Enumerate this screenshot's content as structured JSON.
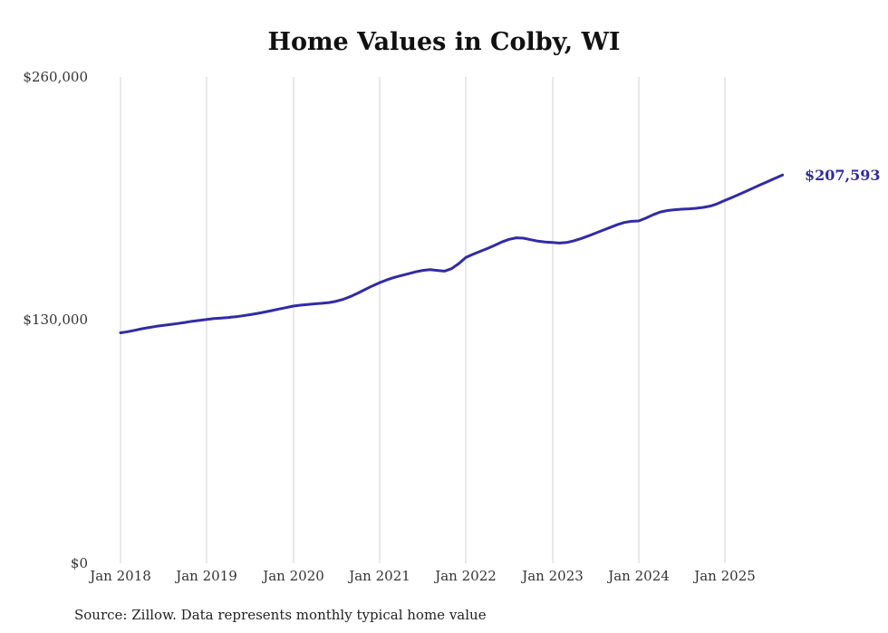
{
  "title": "Home Values in Colby, WI",
  "source_note": "Source: Zillow. Data represents monthly typical home value",
  "end_label": "$207,593",
  "line_color": "#312ba6",
  "grid_color": "#d3d3d3",
  "chart_data": {
    "type": "line",
    "title": "Home Values in Colby, WI",
    "xlabel": "",
    "ylabel": "",
    "ylim": [
      0,
      260000
    ],
    "y_tick_labels": [
      "$0",
      "$130,000",
      "$260,000"
    ],
    "x_tick_labels": [
      "Jan 2018",
      "Jan 2019",
      "Jan 2020",
      "Jan 2021",
      "Jan 2022",
      "Jan 2023",
      "Jan 2024",
      "Jan 2025"
    ],
    "x_start": "Jan 2018",
    "x_end": "Sep 2025",
    "grid": "vertical",
    "legend_position": "none",
    "final_value": 207593,
    "final_value_label": "$207,593",
    "series": [
      {
        "name": "Typical home value",
        "values": [
          123200,
          123800,
          124600,
          125400,
          126100,
          126700,
          127200,
          127700,
          128200,
          128800,
          129400,
          129900,
          130400,
          130800,
          131100,
          131400,
          131800,
          132300,
          132900,
          133600,
          134300,
          135100,
          135900,
          136700,
          137500,
          138000,
          138400,
          138700,
          139000,
          139400,
          140100,
          141200,
          142700,
          144500,
          146400,
          148300,
          150000,
          151500,
          152800,
          153800,
          154800,
          155800,
          156600,
          157000,
          156600,
          156200,
          157500,
          160200,
          163500,
          165200,
          166800,
          168300,
          170000,
          171800,
          173200,
          174000,
          173800,
          173000,
          172200,
          171800,
          171500,
          171200,
          171500,
          172400,
          173600,
          175000,
          176500,
          178000,
          179500,
          181000,
          182200,
          182800,
          183000,
          184500,
          186300,
          187800,
          188600,
          189000,
          189300,
          189500,
          189800,
          190300,
          191000,
          192300,
          194000,
          195600,
          197300,
          199000,
          200800,
          202500,
          204200,
          205900,
          207593
        ]
      }
    ]
  }
}
